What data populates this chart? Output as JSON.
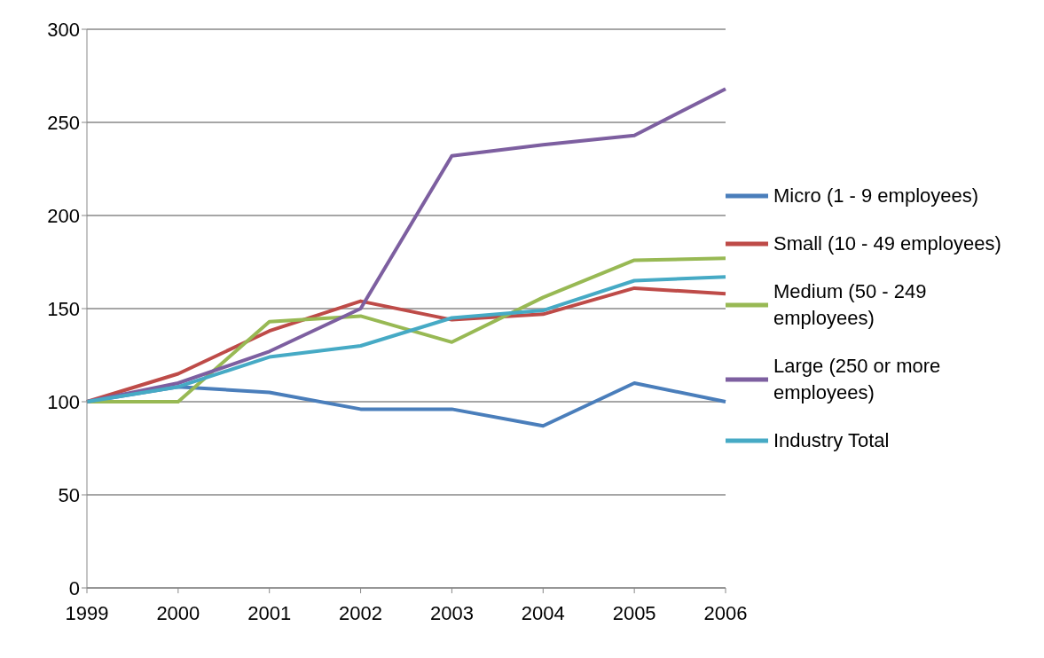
{
  "chart_data": {
    "type": "line",
    "categories": [
      "1999",
      "2000",
      "2001",
      "2002",
      "2003",
      "2004",
      "2005",
      "2006"
    ],
    "series": [
      {
        "name": "Micro (1 - 9 employees)",
        "color": "#4a7ebb",
        "values": [
          100,
          108,
          105,
          96,
          96,
          87,
          110,
          100
        ]
      },
      {
        "name": "Small (10 - 49 employees)",
        "color": "#be4b48",
        "values": [
          100,
          115,
          138,
          154,
          144,
          147,
          161,
          158
        ]
      },
      {
        "name": "Medium (50 - 249 employees)",
        "color": "#98b954",
        "values": [
          100,
          100,
          143,
          146,
          132,
          156,
          176,
          177
        ]
      },
      {
        "name": "Large (250 or more employees)",
        "color": "#7d5fa0",
        "values": [
          100,
          110,
          127,
          150,
          232,
          238,
          243,
          268
        ]
      },
      {
        "name": "Industry Total",
        "color": "#46aac5",
        "values": [
          100,
          108,
          124,
          130,
          145,
          149,
          165,
          167
        ]
      }
    ],
    "ylim": [
      0,
      300
    ],
    "yticks": [
      0,
      50,
      100,
      150,
      200,
      250,
      300
    ],
    "grid": "y",
    "legend": "right",
    "marker": "none",
    "line_style": "solid"
  }
}
